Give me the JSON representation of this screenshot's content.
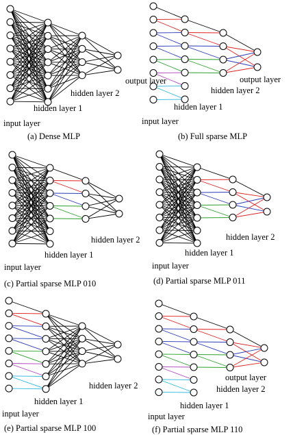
{
  "colors": {
    "dense": "#000000",
    "red": "#e02020",
    "blue": "#2838b8",
    "green": "#28a028",
    "magenta": "#b040c0",
    "cyan": "#30b8e0"
  },
  "panels": [
    {
      "id": "a",
      "caption": "(a) Dense MLP",
      "layer1": "dense",
      "layer2": "dense",
      "labels": {
        "input": "input layer",
        "hidden1": "hidden layer 1",
        "hidden2": "hidden layer 2",
        "output": "output layer"
      }
    },
    {
      "id": "b",
      "caption": "(b) Full sparse MLP",
      "layer1": "sparse",
      "layer2": "sparse",
      "labels": {
        "input": "input layer",
        "hidden1": "hidden layer 1",
        "hidden2": "hidden layer 2",
        "output": "output layer"
      }
    },
    {
      "id": "c",
      "caption": "(c)  Partial sparse MLP 010",
      "layer1": "dense",
      "layer2": "sparse",
      "labels": {
        "input": "input layer",
        "hidden1": "hidden layer 1",
        "hidden2": "hidden layer 2",
        "output": ""
      }
    },
    {
      "id": "d",
      "caption": "(d)  Partial sparse MLP 011",
      "layer1": "dense",
      "layer2": "sparse",
      "labels": {
        "input": "input layer",
        "hidden1": "hidden layer 1",
        "hidden2": "hidden layer 2",
        "output": ""
      }
    },
    {
      "id": "e",
      "caption": "(e)  Partial sparse MLP 100",
      "layer1": "sparse",
      "layer2": "dense",
      "labels": {
        "input": "input layer",
        "hidden1": "hidden layer 1",
        "hidden2": "hidden layer 2",
        "output": ""
      }
    },
    {
      "id": "f",
      "caption": "(f)  Partial sparse MLP 110",
      "layer1": "sparse",
      "layer2": "sparse",
      "labels": {
        "input": "input layer",
        "hidden1": "hidden layer 1",
        "hidden2": "hidden layer 2",
        "output": "output layer"
      }
    }
  ]
}
